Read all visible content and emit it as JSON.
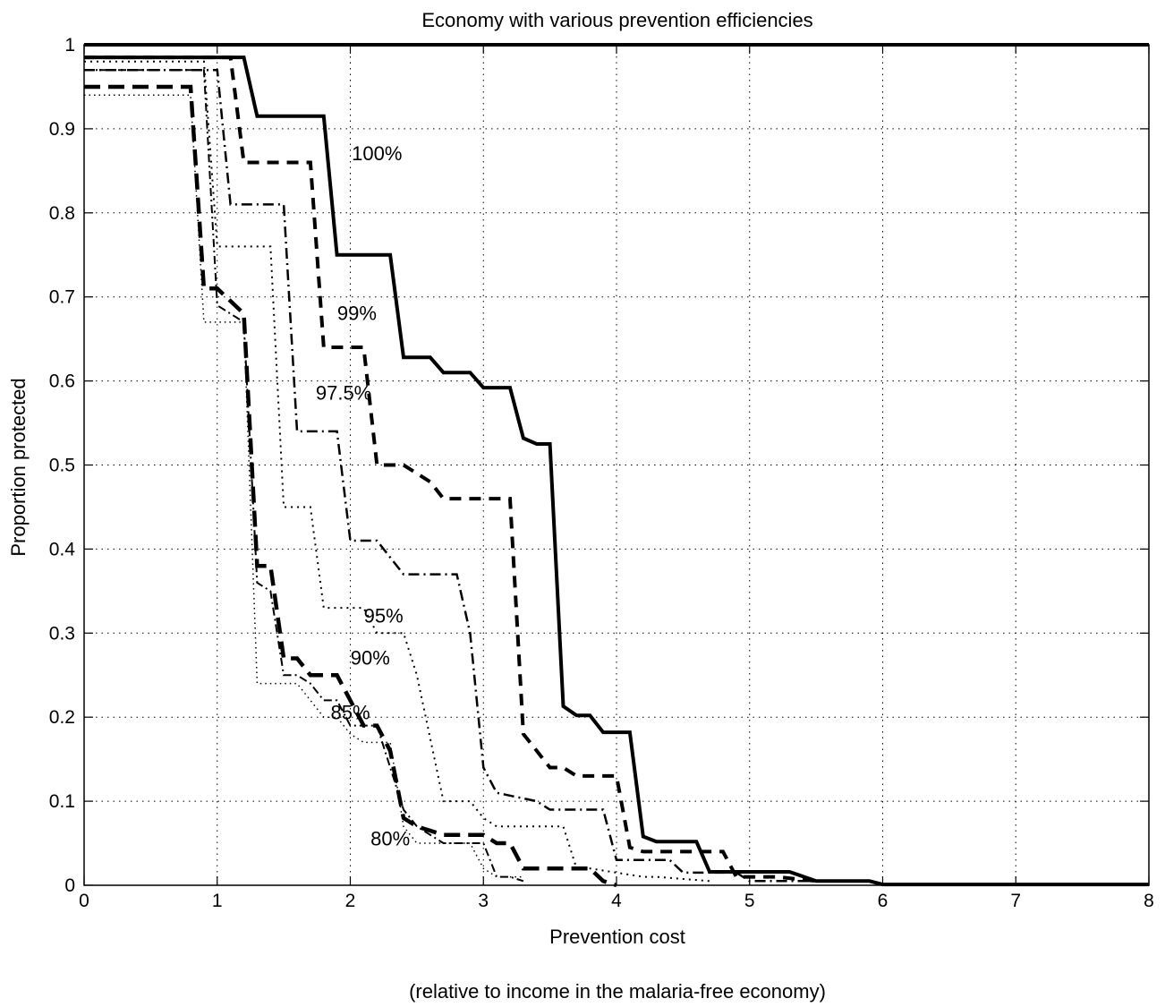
{
  "chart_data": {
    "type": "line",
    "title": "Economy with various prevention efficiencies",
    "xlabel": "Prevention cost",
    "xlabel_note": "(relative to income in the malaria-free economy)",
    "ylabel": "Proportion protected",
    "xlim": [
      0,
      8
    ],
    "ylim": [
      0,
      1
    ],
    "grid": true,
    "xticks": [
      0,
      1,
      2,
      3,
      4,
      5,
      6,
      7,
      8
    ],
    "yticks": [
      0,
      0.1,
      0.2,
      0.3,
      0.4,
      0.5,
      0.6,
      0.7,
      0.8,
      0.9,
      1
    ],
    "xtick_labels": [
      "0",
      "1",
      "2",
      "3",
      "4",
      "5",
      "6",
      "7",
      "8"
    ],
    "ytick_labels": [
      "0",
      "0.1",
      "0.2",
      "0.3",
      "0.4",
      "0.5",
      "0.6",
      "0.7",
      "0.8",
      "0.9",
      "1"
    ],
    "series": [
      {
        "name": "100%",
        "style": "solid-thick",
        "label_at": [
          2.2,
          0.87
        ],
        "x": [
          0,
          1.2,
          1.3,
          1.8,
          1.9,
          2.3,
          2.4,
          2.6,
          2.7,
          2.9,
          3.0,
          3.2,
          3.3,
          3.4,
          3.5,
          3.6,
          3.7,
          3.8,
          3.9,
          4.1,
          4.2,
          4.3,
          4.6,
          4.7,
          5.3,
          5.5,
          5.9,
          6.0,
          8.0
        ],
        "y": [
          0.985,
          0.985,
          0.915,
          0.915,
          0.75,
          0.75,
          0.628,
          0.628,
          0.61,
          0.61,
          0.592,
          0.592,
          0.532,
          0.525,
          0.525,
          0.213,
          0.202,
          0.202,
          0.182,
          0.182,
          0.058,
          0.052,
          0.052,
          0.016,
          0.016,
          0.005,
          0.005,
          0.001,
          0.001
        ]
      },
      {
        "name": "99%",
        "style": "dashed-thick",
        "label_at": [
          2.05,
          0.68
        ],
        "x": [
          0,
          1.1,
          1.2,
          1.7,
          1.8,
          2.1,
          2.2,
          2.4,
          2.6,
          2.7,
          3.2,
          3.3,
          3.4,
          3.5,
          3.6,
          3.7,
          4.0,
          4.1,
          4.2,
          4.8,
          4.9,
          5.2,
          5.5
        ],
        "y": [
          0.985,
          0.985,
          0.86,
          0.86,
          0.64,
          0.64,
          0.5,
          0.5,
          0.48,
          0.46,
          0.46,
          0.18,
          0.16,
          0.14,
          0.14,
          0.13,
          0.13,
          0.045,
          0.04,
          0.04,
          0.01,
          0.01,
          0.005
        ]
      },
      {
        "name": "97.5%",
        "style": "dashdot",
        "label_at": [
          1.95,
          0.585
        ],
        "x": [
          0,
          1.0,
          1.1,
          1.5,
          1.6,
          1.9,
          2.0,
          2.2,
          2.4,
          2.8,
          2.9,
          3.0,
          3.1,
          3.4,
          3.5,
          3.9,
          4.0,
          4.4,
          4.5,
          4.9,
          5.0,
          5.5
        ],
        "y": [
          0.97,
          0.97,
          0.81,
          0.81,
          0.54,
          0.54,
          0.41,
          0.41,
          0.37,
          0.37,
          0.3,
          0.14,
          0.11,
          0.1,
          0.09,
          0.09,
          0.03,
          0.03,
          0.015,
          0.015,
          0.005,
          0.005
        ]
      },
      {
        "name": "95%",
        "style": "dotted",
        "label_at": [
          2.25,
          0.32
        ],
        "x": [
          0,
          0.9,
          1.0,
          1.4,
          1.5,
          1.7,
          1.8,
          2.1,
          2.2,
          2.4,
          2.5,
          2.7,
          2.9,
          3.0,
          3.1,
          3.6,
          3.7,
          3.8,
          4.2,
          4.3,
          4.7
        ],
        "y": [
          0.98,
          0.98,
          0.76,
          0.76,
          0.45,
          0.45,
          0.33,
          0.33,
          0.3,
          0.3,
          0.25,
          0.1,
          0.1,
          0.08,
          0.07,
          0.07,
          0.02,
          0.02,
          0.01,
          0.01,
          0.005
        ]
      },
      {
        "name": "90%",
        "style": "dashed-long",
        "label_at": [
          2.15,
          0.27
        ],
        "x": [
          0,
          0.8,
          0.9,
          1.0,
          1.2,
          1.3,
          1.4,
          1.5,
          1.6,
          1.7,
          1.8,
          1.9,
          2.1,
          2.2,
          2.3,
          2.4,
          2.5,
          2.7,
          3.0,
          3.1,
          3.2,
          3.3,
          3.8,
          3.9,
          4.0
        ],
        "y": [
          0.95,
          0.95,
          0.71,
          0.71,
          0.68,
          0.38,
          0.38,
          0.27,
          0.27,
          0.25,
          0.25,
          0.25,
          0.19,
          0.19,
          0.16,
          0.08,
          0.07,
          0.06,
          0.06,
          0.05,
          0.05,
          0.02,
          0.02,
          0.005,
          0.0
        ]
      },
      {
        "name": "85%",
        "style": "dashdot-fine",
        "label_at": [
          2.0,
          0.205
        ],
        "x": [
          0,
          0.9,
          1.0,
          1.2,
          1.3,
          1.4,
          1.5,
          1.6,
          1.7,
          1.8,
          1.9,
          2.0,
          2.1,
          2.2,
          2.4,
          2.5,
          2.6,
          2.7,
          3.0,
          3.1,
          3.2,
          3.3
        ],
        "y": [
          0.97,
          0.97,
          0.69,
          0.67,
          0.36,
          0.35,
          0.25,
          0.25,
          0.24,
          0.22,
          0.22,
          0.19,
          0.19,
          0.19,
          0.09,
          0.07,
          0.06,
          0.05,
          0.05,
          0.01,
          0.01,
          0.005
        ]
      },
      {
        "name": "80%",
        "style": "dotted-fine",
        "label_at": [
          2.3,
          0.055
        ],
        "x": [
          0,
          0.8,
          0.9,
          1.2,
          1.3,
          1.5,
          1.6,
          1.8,
          1.9,
          2.0,
          2.1,
          2.3,
          2.4,
          2.5,
          2.6,
          2.8,
          2.9,
          3.0,
          3.1,
          3.3
        ],
        "y": [
          0.94,
          0.94,
          0.67,
          0.67,
          0.24,
          0.24,
          0.24,
          0.2,
          0.2,
          0.18,
          0.17,
          0.17,
          0.07,
          0.05,
          0.05,
          0.05,
          0.05,
          0.02,
          0.01,
          0.01
        ]
      }
    ]
  }
}
